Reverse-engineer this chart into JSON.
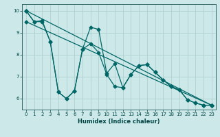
{
  "xlabel": "Humidex (Indice chaleur)",
  "bg_color": "#cce8e8",
  "line_color": "#006666",
  "grid_color": "#aacccc",
  "xlim": [
    -0.5,
    23.5
  ],
  "ylim": [
    5.5,
    10.3
  ],
  "yticks": [
    6,
    7,
    8,
    9,
    10
  ],
  "xticks": [
    0,
    1,
    2,
    3,
    4,
    5,
    6,
    7,
    8,
    9,
    10,
    11,
    12,
    13,
    14,
    15,
    16,
    17,
    18,
    19,
    20,
    21,
    22,
    23
  ],
  "line1_x": [
    0,
    1,
    2,
    3,
    4,
    5,
    6,
    7,
    8,
    9,
    10,
    11,
    12,
    13,
    14,
    15,
    16,
    17,
    18,
    19,
    20,
    21,
    22,
    23
  ],
  "line1_y": [
    10.0,
    9.5,
    9.5,
    8.6,
    6.3,
    6.0,
    6.35,
    8.25,
    8.5,
    8.1,
    7.1,
    6.55,
    6.5,
    7.1,
    7.5,
    7.55,
    7.2,
    6.85,
    6.55,
    6.4,
    5.95,
    5.8,
    5.7,
    5.7
  ],
  "line2_x": [
    0,
    1,
    2,
    3,
    4,
    5,
    6,
    7,
    8,
    9,
    10,
    11,
    12,
    13,
    14,
    15,
    16,
    17,
    18,
    19,
    20,
    21,
    22,
    23
  ],
  "line2_y": [
    10.0,
    9.5,
    9.55,
    8.6,
    6.3,
    6.0,
    6.35,
    8.25,
    9.25,
    9.15,
    7.15,
    7.6,
    6.5,
    7.1,
    7.5,
    7.55,
    7.2,
    6.85,
    6.55,
    6.4,
    5.95,
    5.8,
    5.7,
    5.7
  ],
  "line3_x": [
    0,
    23
  ],
  "line3_y": [
    10.0,
    5.7
  ],
  "line4_x": [
    0,
    23
  ],
  "line4_y": [
    9.5,
    5.7
  ]
}
